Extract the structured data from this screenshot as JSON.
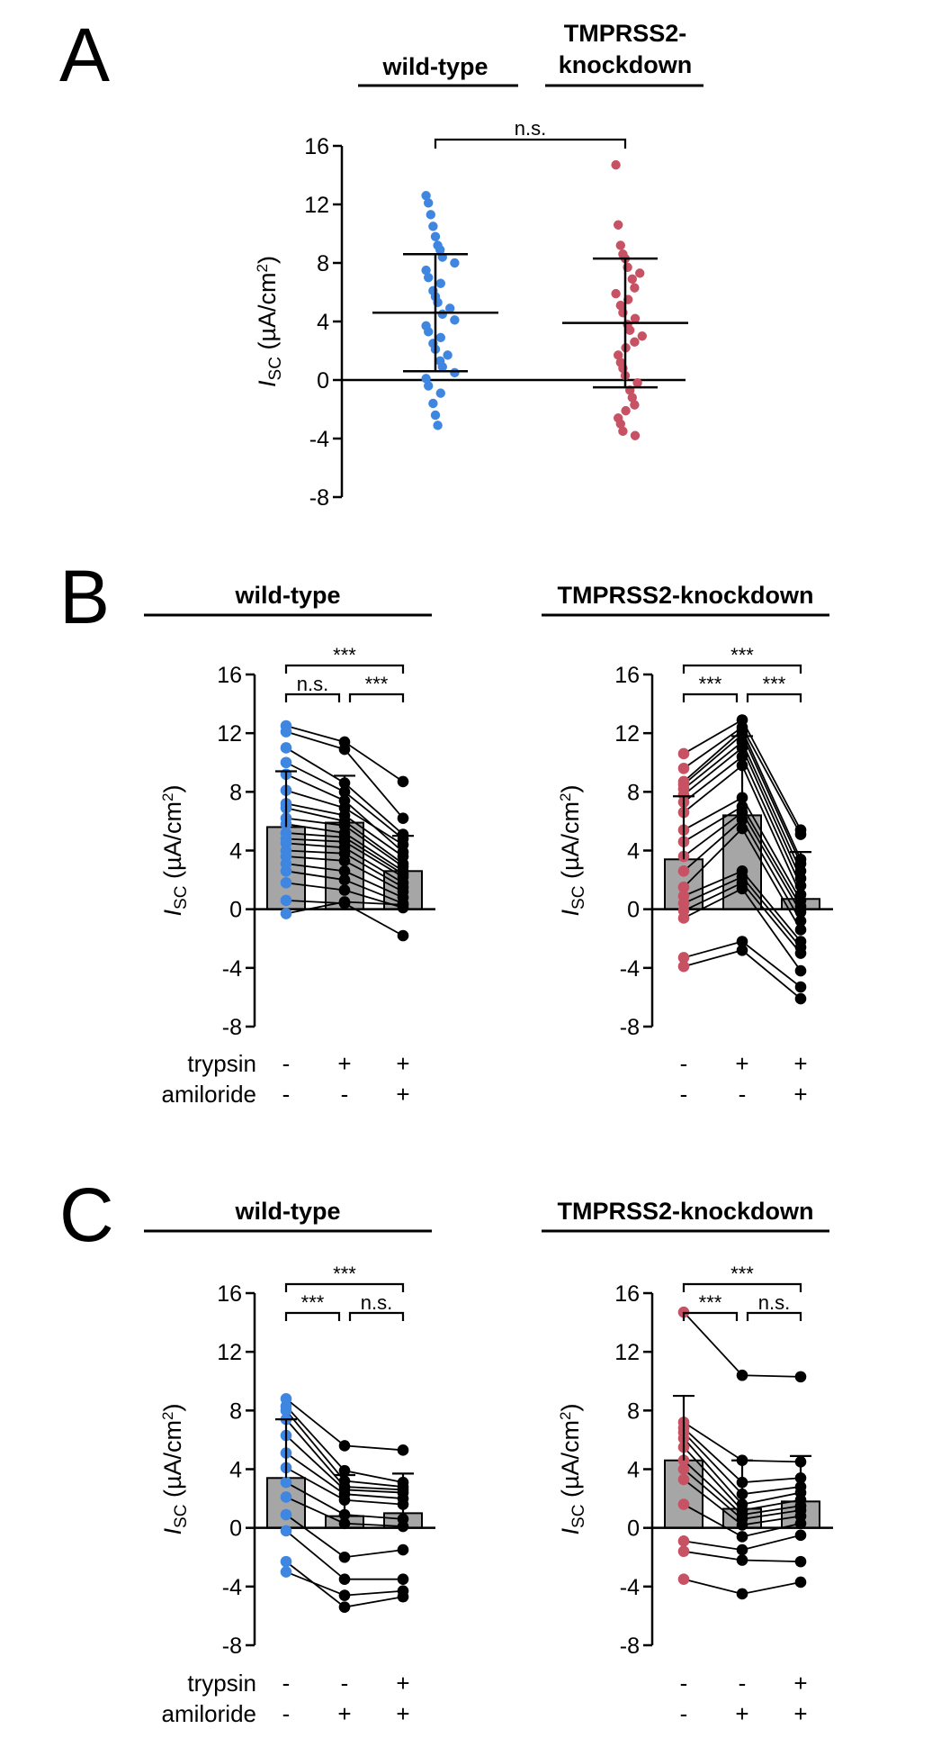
{
  "colors": {
    "wildtype": "#3f86e0",
    "knockdown": "#c75264",
    "bar": "#a6a6a6",
    "marker": "#000000"
  },
  "panels": {
    "A": {
      "letter": "A",
      "header_wt": "wild-type",
      "header_kd_line1": "TMPRSS2-",
      "header_kd_line2": "knockdown",
      "sig": "n.s."
    },
    "B": {
      "letter": "B",
      "header_wt": "wild-type",
      "header_kd": "TMPRSS2-knockdown"
    },
    "C": {
      "letter": "C",
      "header_wt": "wild-type",
      "header_kd": "TMPRSS2-knockdown"
    }
  },
  "conditions": {
    "B": {
      "trypsin": {
        "label": "trypsin",
        "values": [
          "-",
          "+",
          "+"
        ]
      },
      "amiloride": {
        "label": "amiloride",
        "values": [
          "-",
          "-",
          "+"
        ]
      }
    },
    "C": {
      "trypsin": {
        "label": "trypsin",
        "values": [
          "-",
          "-",
          "+"
        ]
      },
      "amiloride": {
        "label": "amiloride",
        "values": [
          "-",
          "+",
          "+"
        ]
      }
    }
  },
  "chart_data": [
    {
      "panel": "A",
      "type": "scatter",
      "ylabel": "ISC (µA/cm2)",
      "ylim": [
        -8,
        16
      ],
      "yticks": [
        -8,
        -4,
        0,
        4,
        8,
        12,
        16
      ],
      "categories": [
        "wild-type",
        "TMPRSS2-knockdown"
      ],
      "groups": [
        {
          "name": "wild-type",
          "mean": 4.6,
          "sd": 4.0,
          "values": [
            12.6,
            12.1,
            11.3,
            10.5,
            9.8,
            9.2,
            8.9,
            8.4,
            8.0,
            7.5,
            7.0,
            6.6,
            6.1,
            5.7,
            5.3,
            4.9,
            4.5,
            4.1,
            3.7,
            3.3,
            2.9,
            2.5,
            2.1,
            1.7,
            1.3,
            0.9,
            0.5,
            0.1,
            -0.4,
            -0.9,
            -1.6,
            -2.4,
            -3.1
          ]
        },
        {
          "name": "TMPRSS2-knockdown",
          "mean": 3.9,
          "sd": 4.4,
          "values": [
            14.7,
            10.6,
            9.2,
            8.6,
            8.3,
            7.7,
            7.3,
            6.9,
            6.3,
            5.9,
            5.5,
            5.1,
            4.6,
            4.2,
            3.8,
            3.4,
            3.0,
            2.6,
            2.2,
            1.7,
            1.2,
            0.8,
            0.3,
            -0.2,
            -0.7,
            -1.2,
            -1.7,
            -2.1,
            -2.6,
            -3.0,
            -3.5,
            -3.8
          ]
        }
      ]
    },
    {
      "panel": "B",
      "subpanel": "wild-type",
      "type": "bar",
      "ylabel": "ISC (µA/cm2)",
      "ylim": [
        -8,
        16
      ],
      "yticks": [
        -8,
        -4,
        0,
        4,
        8,
        12,
        16
      ],
      "categories": [
        "-/-",
        "+/-",
        "+/+"
      ],
      "means": [
        5.6,
        5.9,
        2.6
      ],
      "sd": [
        3.8,
        3.2,
        2.4
      ],
      "sig": [
        {
          "label": "n.s.",
          "from": 0,
          "to": 1
        },
        {
          "label": "***",
          "from": 1,
          "to": 2
        },
        {
          "label": "***",
          "from": 0,
          "to": 2
        }
      ],
      "paired": [
        [
          12.5,
          11.4,
          8.7
        ],
        [
          12.1,
          10.9,
          6.2
        ],
        [
          11.0,
          8.6,
          5.1
        ],
        [
          10.0,
          8.0,
          4.8
        ],
        [
          9.2,
          7.4,
          3.9
        ],
        [
          8.1,
          6.9,
          4.4
        ],
        [
          7.2,
          6.4,
          3.6
        ],
        [
          6.9,
          6.0,
          3.1
        ],
        [
          6.2,
          5.7,
          2.9
        ],
        [
          5.8,
          5.2,
          2.6
        ],
        [
          5.2,
          4.9,
          2.4
        ],
        [
          4.8,
          4.6,
          2.2
        ],
        [
          4.5,
          4.2,
          1.8
        ],
        [
          4.0,
          3.8,
          1.5
        ],
        [
          3.6,
          3.3,
          1.2
        ],
        [
          3.1,
          2.6,
          0.8
        ],
        [
          2.6,
          2.0,
          0.4
        ],
        [
          1.8,
          1.3,
          0.1
        ],
        [
          0.6,
          0.4,
          -1.8
        ],
        [
          -0.3,
          0.5,
          0.3
        ]
      ]
    },
    {
      "panel": "B",
      "subpanel": "TMPRSS2-knockdown",
      "type": "bar",
      "ylabel": "ISC (µA/cm2)",
      "ylim": [
        -8,
        16
      ],
      "yticks": [
        -8,
        -4,
        0,
        4,
        8,
        12,
        16
      ],
      "categories": [
        "-/-",
        "+/-",
        "+/+"
      ],
      "means": [
        3.4,
        6.4,
        0.7
      ],
      "sd": [
        4.3,
        5.4,
        3.2
      ],
      "sig": [
        {
          "label": "***",
          "from": 0,
          "to": 1
        },
        {
          "label": "***",
          "from": 1,
          "to": 2
        },
        {
          "label": "***",
          "from": 0,
          "to": 2
        }
      ],
      "paired": [
        [
          10.6,
          12.9,
          5.4
        ],
        [
          9.6,
          12.4,
          5.1
        ],
        [
          8.7,
          12.2,
          3.4
        ],
        [
          8.5,
          11.9,
          3.1
        ],
        [
          8.2,
          11.4,
          2.6
        ],
        [
          7.8,
          11.0,
          2.1
        ],
        [
          7.3,
          10.4,
          1.6
        ],
        [
          6.6,
          9.8,
          1.0
        ],
        [
          5.4,
          7.6,
          0.6
        ],
        [
          4.6,
          7.0,
          0.2
        ],
        [
          3.6,
          6.6,
          -0.2
        ],
        [
          2.6,
          6.1,
          -0.8
        ],
        [
          1.5,
          5.5,
          -1.4
        ],
        [
          0.9,
          2.6,
          -2.2
        ],
        [
          0.4,
          2.2,
          -2.6
        ],
        [
          -0.1,
          1.8,
          -3.0
        ],
        [
          -0.6,
          1.4,
          -4.2
        ],
        [
          -3.3,
          -2.2,
          -5.3
        ],
        [
          -3.9,
          -2.8,
          -6.1
        ]
      ]
    },
    {
      "panel": "C",
      "subpanel": "wild-type",
      "type": "bar",
      "ylabel": "ISC (µA/cm2)",
      "ylim": [
        -8,
        16
      ],
      "yticks": [
        -8,
        -4,
        0,
        4,
        8,
        12,
        16
      ],
      "categories": [
        "-/-",
        "-/+",
        "+/+"
      ],
      "means": [
        3.4,
        0.8,
        1.0
      ],
      "sd": [
        4.0,
        2.8,
        2.7
      ],
      "sig": [
        {
          "label": "***",
          "from": 0,
          "to": 1
        },
        {
          "label": "n.s.",
          "from": 1,
          "to": 2
        },
        {
          "label": "***",
          "from": 0,
          "to": 2
        }
      ],
      "paired": [
        [
          8.8,
          5.6,
          5.3
        ],
        [
          8.3,
          3.9,
          3.1
        ],
        [
          8.0,
          3.2,
          2.8
        ],
        [
          7.4,
          2.8,
          2.6
        ],
        [
          6.3,
          2.6,
          2.4
        ],
        [
          5.1,
          2.3,
          2.0
        ],
        [
          4.1,
          1.9,
          1.6
        ],
        [
          3.1,
          0.9,
          0.6
        ],
        [
          2.1,
          0.3,
          0.1
        ],
        [
          0.9,
          -2.0,
          -1.5
        ],
        [
          -0.2,
          -3.5,
          -3.5
        ],
        [
          -2.3,
          -5.4,
          -4.7
        ],
        [
          -3.0,
          -4.6,
          -4.3
        ]
      ]
    },
    {
      "panel": "C",
      "subpanel": "TMPRSS2-knockdown",
      "type": "bar",
      "ylabel": "ISC (µA/cm2)",
      "ylim": [
        -8,
        16
      ],
      "yticks": [
        -8,
        -4,
        0,
        4,
        8,
        12,
        16
      ],
      "categories": [
        "-/-",
        "-/+",
        "+/+"
      ],
      "means": [
        4.6,
        1.3,
        1.8
      ],
      "sd": [
        4.4,
        3.3,
        3.1
      ],
      "sig": [
        {
          "label": "***",
          "from": 0,
          "to": 1
        },
        {
          "label": "n.s.",
          "from": 1,
          "to": 2
        },
        {
          "label": "***",
          "from": 0,
          "to": 2
        }
      ],
      "paired": [
        [
          14.7,
          10.4,
          10.3
        ],
        [
          7.2,
          4.6,
          4.5
        ],
        [
          6.8,
          3.1,
          3.4
        ],
        [
          6.5,
          2.3,
          2.8
        ],
        [
          6.1,
          1.6,
          2.4
        ],
        [
          5.5,
          1.2,
          1.9
        ],
        [
          4.6,
          0.9,
          1.5
        ],
        [
          4.0,
          0.6,
          1.2
        ],
        [
          3.3,
          0.2,
          0.8
        ],
        [
          1.6,
          -0.6,
          0.3
        ],
        [
          -0.9,
          -1.5,
          -0.5
        ],
        [
          -1.6,
          -2.2,
          -2.3
        ],
        [
          -3.5,
          -4.5,
          -3.7
        ]
      ]
    }
  ]
}
